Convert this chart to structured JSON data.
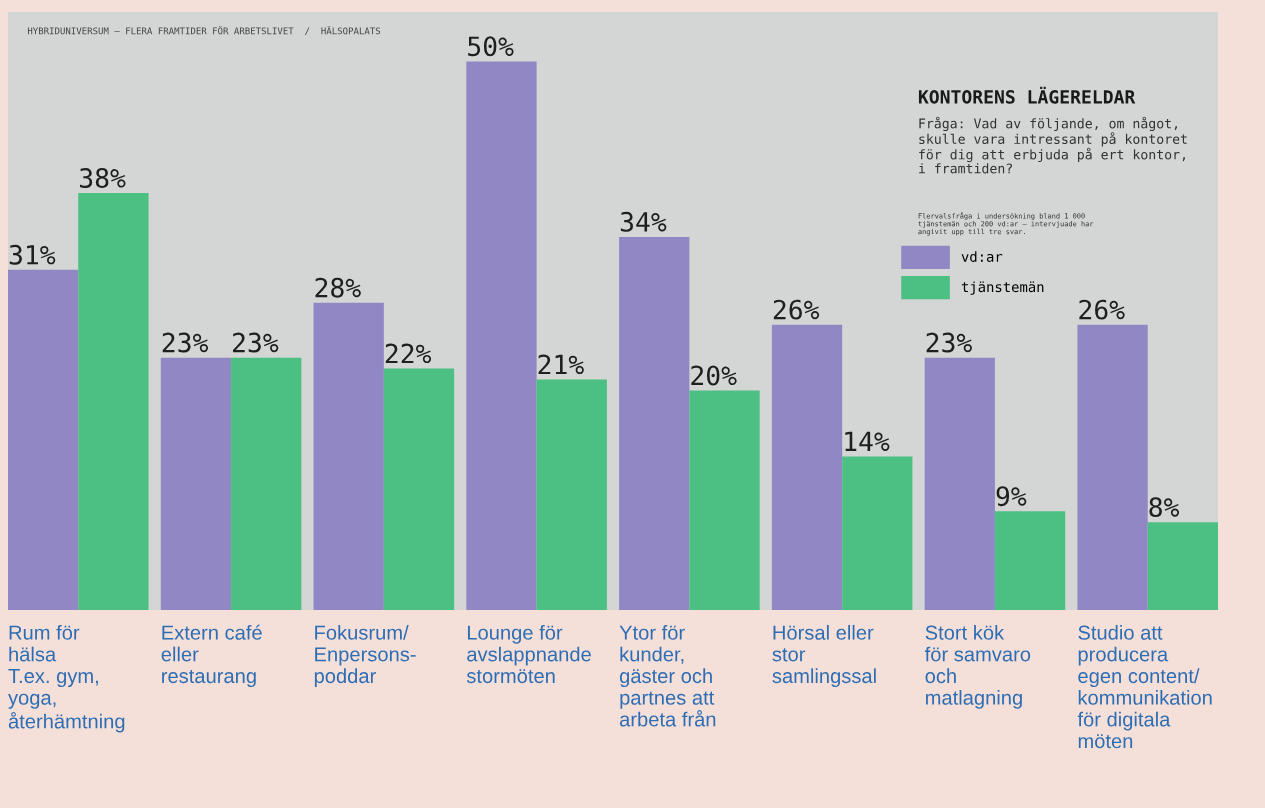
{
  "chart_data": {
    "type": "bar",
    "title": "KONTORENS LÄGERELDAR",
    "subtitle": "Fråga: Vad av följande, om något,\nskulle vara intressant på kontoret\nför dig att erbjuda på ert kontor,\ni framtiden?",
    "annotations": [
      "Flervalsfråga i undersökning bland 1 000\ntjänstemän och 200 vd:ar – intervjuade har\nangivit upp till tre svar.",
      "HYBRIDUNIVERSUM – FLERA FRAMTIDER FÖR ARBETSLIVET  /  HÄLSOPALATS"
    ],
    "categories": [
      "Rum för\nhälsa\nT.ex. gym,\nyoga,\nåterhämtning",
      "Extern café\neller\nrestaurang",
      "Fokusrum/\nEnpersons-\npoddar",
      "Lounge för\navslappnande\nstormöten",
      "Ytor för\nkunder,\ngäster och\npartnes att\narbeta från",
      "Hörsal eller\nstor\nsamlingssal",
      "Stort kök\nför samvaro\noch\nmatlagning",
      "Studio att\nproducera\negen content/\nkommunikation\nför digitala\nmöten"
    ],
    "series": [
      {
        "name": "vd:ar",
        "color": "#9087c4",
        "values": [
          31,
          23,
          28,
          50,
          34,
          26,
          23,
          26
        ],
        "value_labels": [
          "31%",
          "23%",
          "28%",
          "50%",
          "34%",
          "26%",
          "23%",
          "26%"
        ]
      },
      {
        "name": "tjänstemän",
        "color": "#4cbf82",
        "values": [
          38,
          23,
          22,
          21,
          20,
          14,
          9,
          8
        ],
        "value_labels": [
          "38%",
          "23%",
          "22%",
          "21%",
          "20%",
          "14%",
          "9%",
          "8%"
        ]
      }
    ],
    "legend": "top right"
  }
}
